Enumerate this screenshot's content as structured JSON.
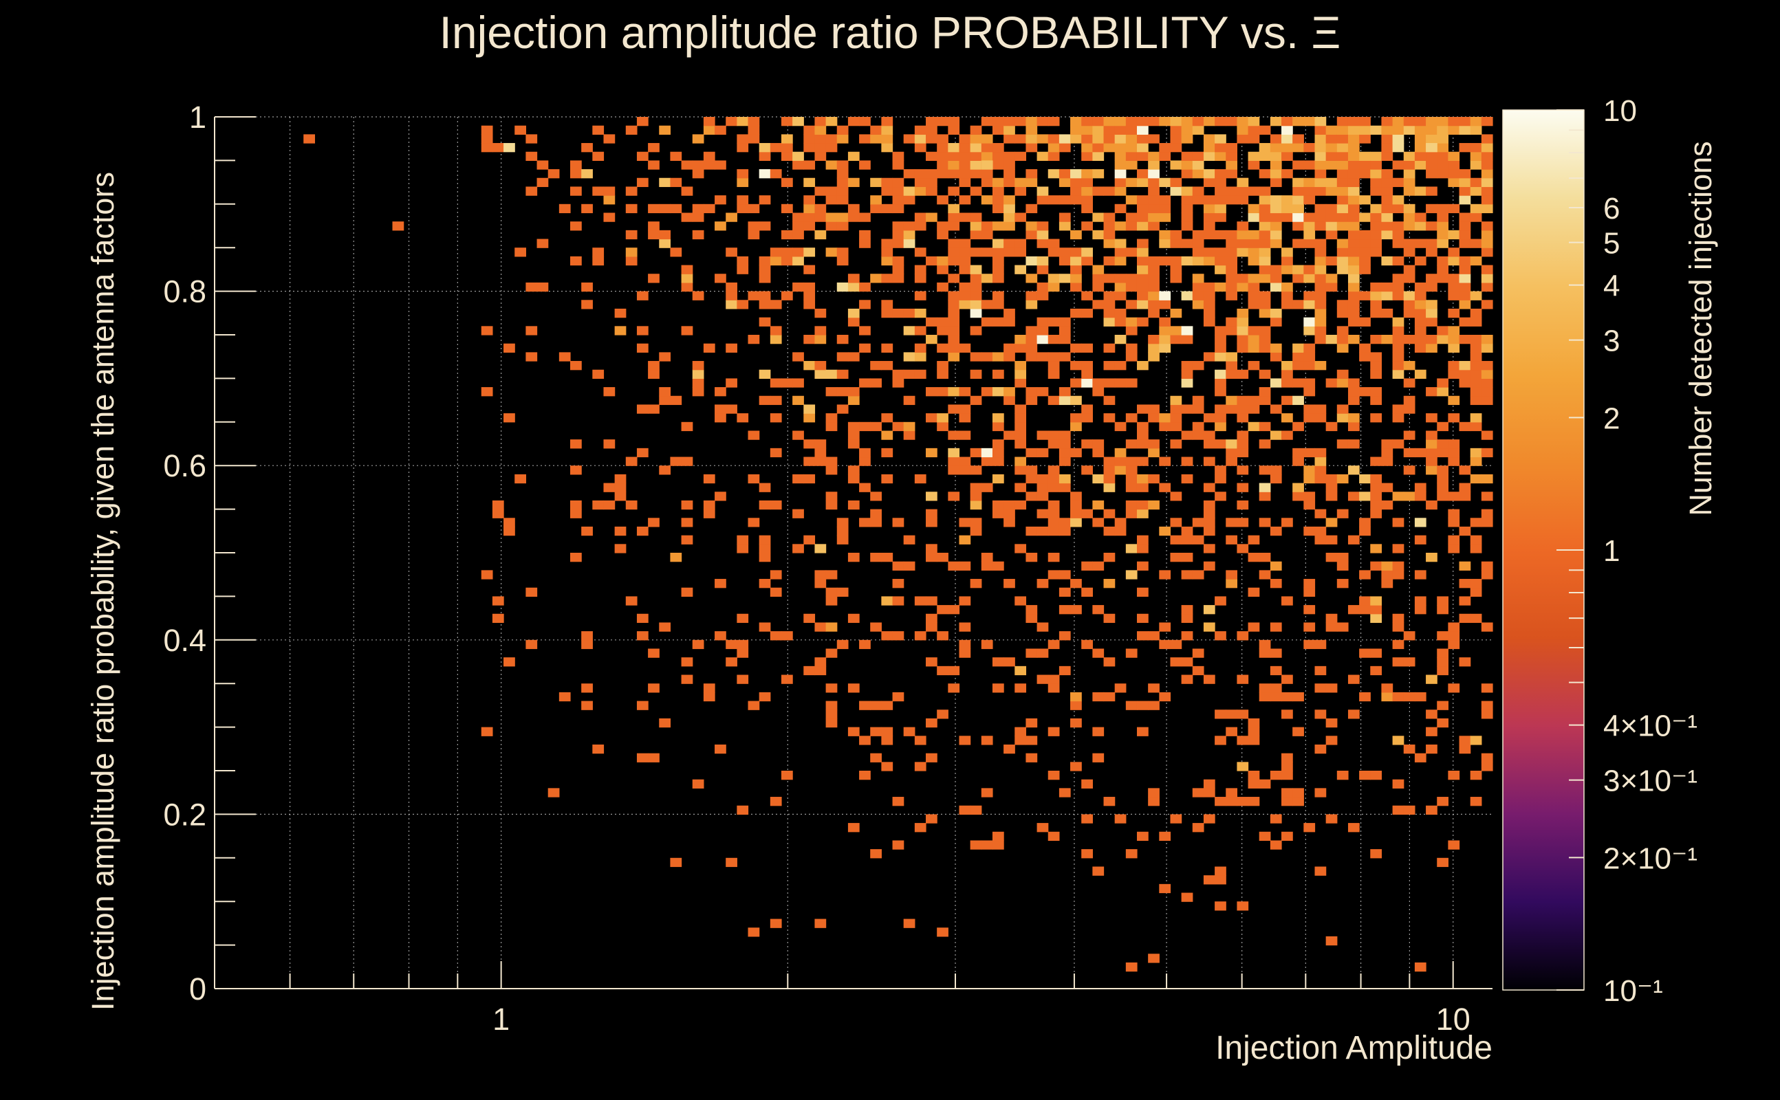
{
  "chart_data": {
    "type": "heatmap",
    "title": "Injection amplitude ratio PROBABILITY vs.  Ξ",
    "xlabel": "Injection Amplitude",
    "ylabel": "Injection amplitude ratio probability, given the antenna factors",
    "zlabel": "Number detected injections",
    "x_scale": "log",
    "xlim": [
      0.5,
      11
    ],
    "ylim": [
      0,
      1
    ],
    "zlim": [
      0.1,
      10
    ],
    "z_scale": "log",
    "x_ticks": [
      {
        "value": 1,
        "label": "1"
      },
      {
        "value": 10,
        "label": "10"
      }
    ],
    "y_ticks": [
      {
        "value": 0,
        "label": "0"
      },
      {
        "value": 0.2,
        "label": "0.2"
      },
      {
        "value": 0.4,
        "label": "0.4"
      },
      {
        "value": 0.6,
        "label": "0.6"
      },
      {
        "value": 0.8,
        "label": "0.8"
      },
      {
        "value": 1,
        "label": "1"
      }
    ],
    "z_ticks": [
      {
        "value": 10,
        "label": "10"
      },
      {
        "value": 6,
        "label": "6"
      },
      {
        "value": 5,
        "label": "5"
      },
      {
        "value": 4,
        "label": "4"
      },
      {
        "value": 3,
        "label": "3"
      },
      {
        "value": 2,
        "label": "2"
      },
      {
        "value": 1,
        "label": "1"
      },
      {
        "value": 0.4,
        "label": "4×10⁻¹"
      },
      {
        "value": 0.3,
        "label": "3×10⁻¹"
      },
      {
        "value": 0.2,
        "label": "2×10⁻¹"
      },
      {
        "value": 0.1,
        "label": "10⁻¹"
      }
    ],
    "grid": true,
    "colormap": [
      "#000004",
      "#320a5e",
      "#781c6d",
      "#bc3754",
      "#d9531e",
      "#ed6925",
      "#f08a2c",
      "#f3a63a",
      "#f5c060",
      "#f4de9c",
      "#fcfcf0"
    ],
    "cell_counts_sample": [
      {
        "x": 0.62,
        "y": 0.97,
        "z": 1
      },
      {
        "x": 1.0,
        "y": 0.55,
        "z": 1
      },
      {
        "x": 1.2,
        "y": 0.62,
        "z": 1
      },
      {
        "x": 1.5,
        "y": 0.59,
        "z": 1
      },
      {
        "x": 2.0,
        "y": 0.24,
        "z": 1
      },
      {
        "x": 2.9,
        "y": 0.06,
        "z": 1
      },
      {
        "x": 3.8,
        "y": 0.39,
        "z": 1
      },
      {
        "x": 5.2,
        "y": 0.1,
        "z": 1
      },
      {
        "x": 7.5,
        "y": 0.05,
        "z": 1
      },
      {
        "x": 9.2,
        "y": 0.02,
        "z": 1
      },
      {
        "x": 6.0,
        "y": 0.92,
        "z": 3
      },
      {
        "x": 9.5,
        "y": 0.96,
        "z": 5
      },
      {
        "x": 3.2,
        "y": 0.94,
        "z": 4
      }
    ]
  }
}
